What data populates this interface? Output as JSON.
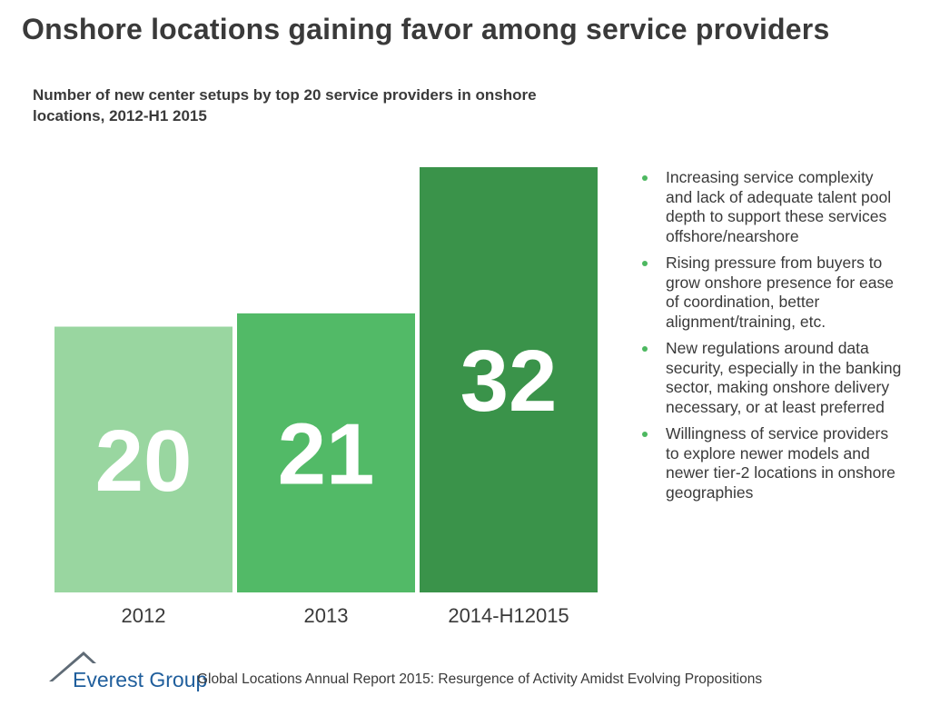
{
  "title": "Onshore locations gaining favor among service providers",
  "subtitle": "Number of new center setups by top 20 service providers in onshore locations, 2012-H1 2015",
  "chart_data": {
    "type": "bar",
    "categories": [
      "2012",
      "2013",
      "2014-H12015"
    ],
    "values": [
      20,
      21,
      32
    ],
    "colors": [
      "#99d6a0",
      "#52ba67",
      "#3a934a"
    ],
    "ylim": [
      0,
      32
    ]
  },
  "bullets": [
    "Increasing service complexity and lack of adequate talent pool depth to support these services offshore/nearshore",
    "Rising pressure from buyers to grow onshore presence for ease of coordination, better alignment/training, etc.",
    "New regulations around data security, especially in the banking sector, making onshore delivery necessary, or at least preferred",
    "Willingness of service providers to explore newer models and newer tier-2 locations in onshore geographies"
  ],
  "footer": {
    "logo": "Everest Group",
    "report": "Global Locations Annual Report 2015: Resurgence of Activity Amidst Evolving Propositions"
  },
  "accent_color": "#4db860"
}
